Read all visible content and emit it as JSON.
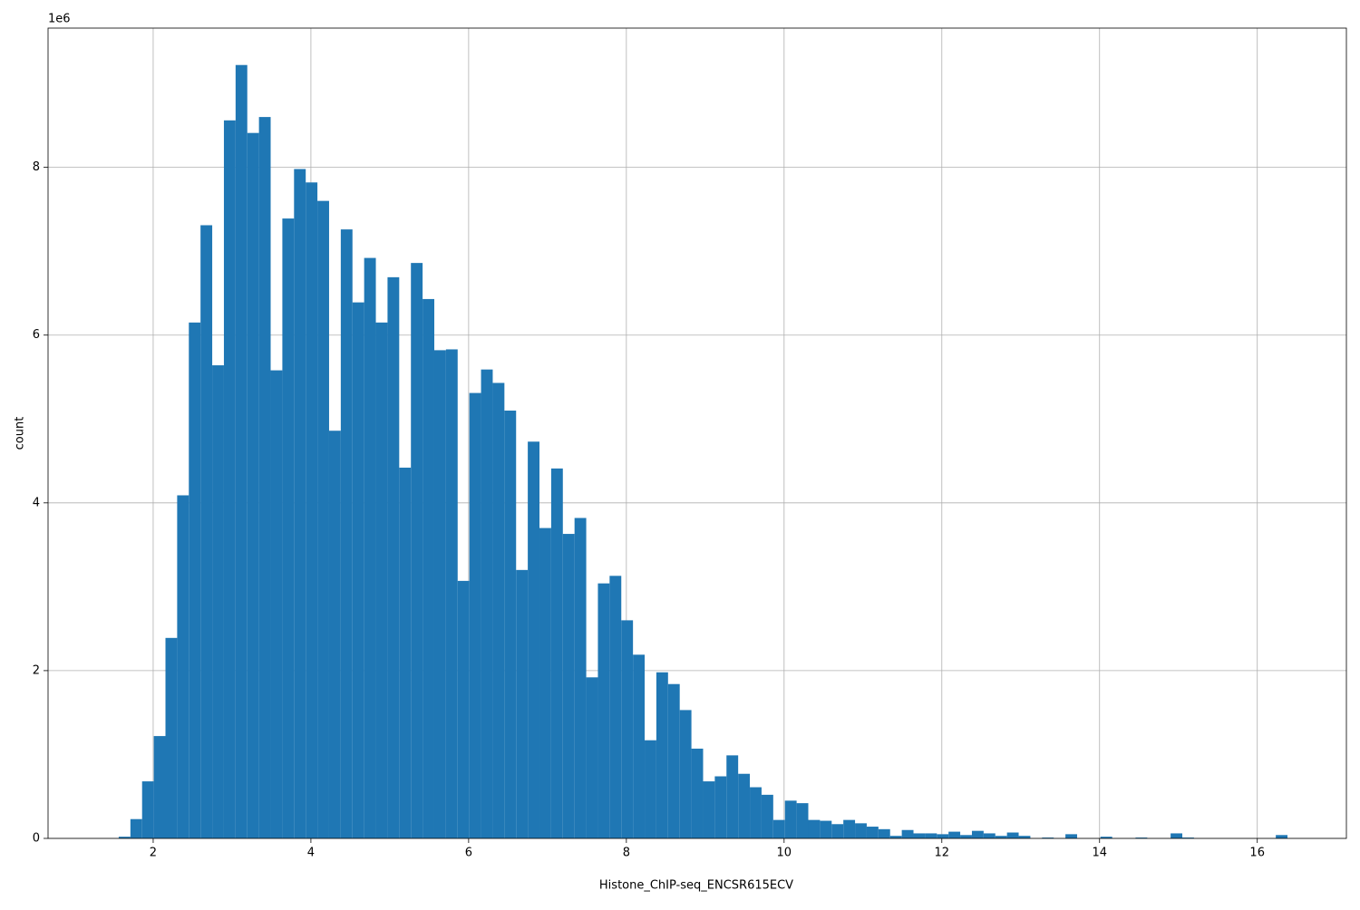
{
  "chart_data": {
    "type": "histogram",
    "xlabel": "Histone_ChIP-seq_ENCSR615ECV",
    "ylabel": "count",
    "y_offset_label": "1e6",
    "color": "#1f77b4",
    "grid": true,
    "xlim": [
      0.667,
      17.13
    ],
    "ylim": [
      0,
      9660000
    ],
    "xticks": [
      2,
      4,
      6,
      8,
      10,
      12,
      14,
      16
    ],
    "yticks": [
      0,
      {
        "value": 2000000,
        "label": "2"
      },
      {
        "value": 4000000,
        "label": "4"
      },
      {
        "value": 6000000,
        "label": "6"
      },
      {
        "value": 8000000,
        "label": "8"
      }
    ],
    "bins": [
      1.563,
      1.7112,
      1.8594,
      2.0076,
      2.1558,
      2.304,
      2.4522,
      2.6004,
      2.7486,
      2.8968,
      3.045,
      3.1932,
      3.3414,
      3.4896,
      3.6378,
      3.786,
      3.9342,
      4.0824,
      4.2306,
      4.3788,
      4.527,
      4.6752,
      4.8234,
      4.9716,
      5.1198,
      5.268,
      5.4162,
      5.5644,
      5.7126,
      5.8608,
      6.009,
      6.1572,
      6.3054,
      6.4536,
      6.6018,
      6.75,
      6.8982,
      7.0464,
      7.1946,
      7.3428,
      7.491,
      7.6392,
      7.7874,
      7.9356,
      8.0838,
      8.232,
      8.3802,
      8.5284,
      8.6766,
      8.8248,
      8.973,
      9.1212,
      9.2694,
      9.4176,
      9.5658,
      9.714,
      9.8622,
      10.0104,
      10.1586,
      10.3068,
      10.455,
      10.6032,
      10.7514,
      10.8996,
      11.0478,
      11.196,
      11.3442,
      11.4924,
      11.6406,
      11.7888,
      11.937,
      12.0852,
      12.2334,
      12.3816,
      12.5298,
      12.678,
      12.8262,
      12.9744,
      13.1226,
      13.2708,
      13.419,
      13.5672,
      13.7154,
      13.8636,
      14.0118,
      14.16,
      14.3082,
      14.4564,
      14.6046,
      14.7528,
      14.901,
      15.0492,
      15.1974,
      15.3456,
      15.4938,
      15.642,
      15.7902,
      15.9384,
      16.0866,
      16.2348,
      16.383
    ],
    "counts": [
      20000,
      230000,
      680000,
      1220000,
      2390000,
      4090000,
      6150000,
      7310000,
      5640000,
      8560000,
      9220000,
      8410000,
      8600000,
      5580000,
      7390000,
      7980000,
      7820000,
      7600000,
      4860000,
      7260000,
      6390000,
      6920000,
      6150000,
      6690000,
      4420000,
      6860000,
      6430000,
      5820000,
      5830000,
      3070000,
      5310000,
      5590000,
      5430000,
      5100000,
      3200000,
      4730000,
      3700000,
      4410000,
      3630000,
      3820000,
      1920000,
      3040000,
      3130000,
      2600000,
      2190000,
      1170000,
      1980000,
      1840000,
      1530000,
      1070000,
      680000,
      740000,
      990000,
      770000,
      610000,
      520000,
      220000,
      450000,
      420000,
      220000,
      210000,
      170000,
      220000,
      180000,
      140000,
      110000,
      30000,
      100000,
      60000,
      60000,
      50000,
      80000,
      40000,
      90000,
      60000,
      30000,
      70000,
      30000,
      0,
      10000,
      0,
      50000,
      0,
      0,
      20000,
      0,
      0,
      10000,
      0,
      0,
      60000,
      10000,
      0,
      0,
      0,
      0,
      0,
      0,
      0,
      40000
    ]
  }
}
